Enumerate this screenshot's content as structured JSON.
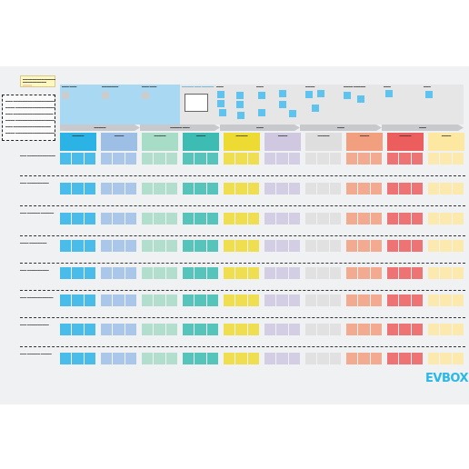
{
  "legend": {
    "note_lines": [
      "▬▬▬▬▬▬▬▬▬▬▬▬▬▬",
      "▬▬▬▬▬▬▬▬▬▬"
    ],
    "box_lines": [
      "▬▬▬ ▬▬▬▬▬▬▬▬▬▬▬▬▬▬▬▬▬▬",
      "▬▬▬▬ ▬▬▬▬▬▬▬▬▬▬▬▬▬▬▬▬▬",
      "▬▬▬ ▬▬▬▬▬▬▬▬▬▬▬▬▬▬▬▬▬",
      "▬▬▬▬ ▬▬▬▬▬▬▬▬▬▬▬▬▬▬▬▬▬",
      "▬▬▬ ▬▬▬▬▬▬▬▬▬▬▬▬▬▬▬▬",
      "▬▬▬▬ ▬▬▬▬▬▬▬▬▬▬▬▬▬▬▬▬▬▬"
    ]
  },
  "phase_titles": [
    "▬▬▬ ▬▬▬",
    "▬▬▬▬▬▬▬",
    "▬▬▬ ▬▬▬",
    "▬▬▬▬▬ ▬▬▬ ▬▬▬▬▬",
    "▬▬▬",
    "▬▬▬",
    "▬▬▬▬",
    "▬▬▬▬ ▬▬▬▬▬",
    "▬▬▬",
    "▬▬▬",
    "▬▬▬▬"
  ],
  "stages": [
    "▬▬▬▬▬",
    "▬▬▬▬▬ ▬▬▬",
    "▬▬▬",
    "▬▬▬",
    "▬▬▬"
  ],
  "column_headers": [
    {
      "title": "▬▬▬▬▬",
      "color": "#2bb3e6"
    },
    {
      "title": "▬▬▬▬",
      "color": "#9dbfe6"
    },
    {
      "title": "▬▬▬▬▬",
      "color": "#a7dcc6"
    },
    {
      "title": "▬▬▬▬",
      "color": "#3cbcb2"
    },
    {
      "title": "▬▬▬▬▬",
      "color": "#eddb33"
    },
    {
      "title": "▬▬▬▬",
      "color": "#cfc8e0"
    },
    {
      "title": "▬▬▬▬▬",
      "color": "#dedede"
    },
    {
      "title": "▬▬▬▬",
      "color": "#f29f7f"
    },
    {
      "title": "▬▬▬▬▬",
      "color": "#ec5d5d"
    },
    {
      "title": "▬▬▬▬",
      "color": "#fde8a1"
    }
  ],
  "row_labels": [
    "▬▬▬ ▬▬▬▬▬▬▬▬▬▬▬▬▬",
    "▬▬▬ ▬▬▬▬▬▬▬▬▬▬",
    "▬▬▬ ▬▬▬▬▬▬ ▬▬▬▬▬▬",
    "▬▬▬▬ ▬▬▬▬▬▬▬▬",
    "▬▬▬ ▬▬▬▬▬▬▬▬▬▬",
    "▬▬▬ ▬▬▬▬▬▬▬▬▬▬▬▬",
    "▬▬▬ ▬▬▬▬▬▬▬▬▬▬",
    "▬▬▬ ▬▬▬▬▬▬ ▬▬▬▬▬"
  ],
  "logo": "EVBOX"
}
